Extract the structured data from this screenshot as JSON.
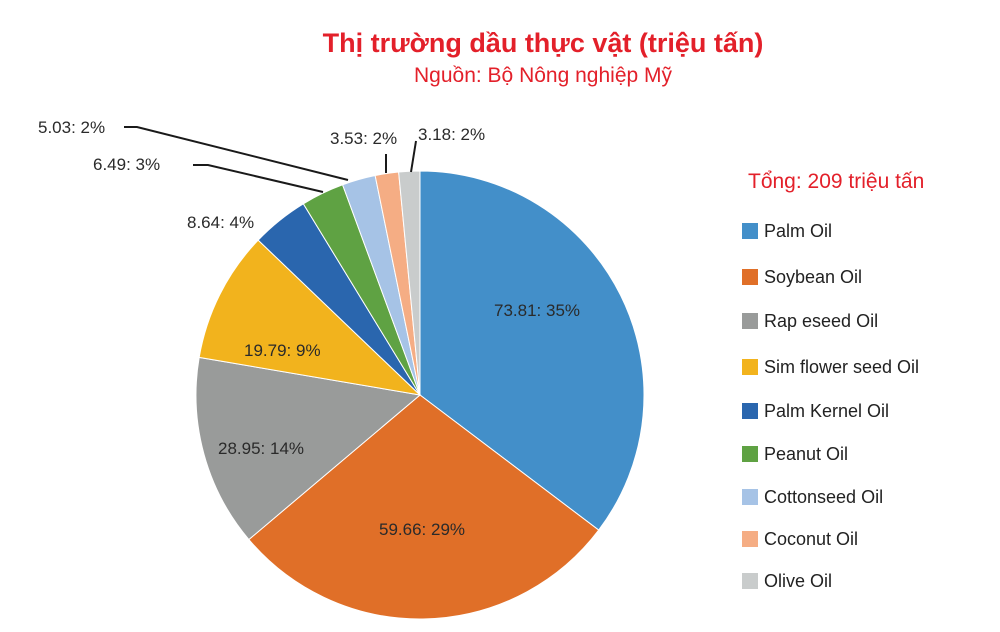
{
  "header": {
    "title": "Thị trường dầu thực vật (triệu tấn)",
    "subtitle": "Nguồn: Bộ Nông nghiệp Mỹ"
  },
  "total_label": "Tổng: 209 triệu tấn",
  "legend": [
    {
      "label": "Palm Oil",
      "color": "#438fc9"
    },
    {
      "label": "Soybean Oil",
      "color": "#e06f28"
    },
    {
      "label": "Rap eseed Oil",
      "color": "#999b9a"
    },
    {
      "label": "Sim flower seed Oil",
      "color": "#f2b31d"
    },
    {
      "label": "Palm Kernel Oil",
      "color": "#2a66ae"
    },
    {
      "label": "Peanut Oil",
      "color": "#5fa243"
    },
    {
      "label": "Cottonseed Oil",
      "color": "#a6c3e6"
    },
    {
      "label": "Coconut Oil",
      "color": "#f5ad84"
    },
    {
      "label": "Olive Oil",
      "color": "#c9cccc"
    }
  ],
  "slice_labels": [
    "73.81: 35%",
    "59.66: 29%",
    "28.95: 14%",
    "19.79: 9%",
    "8.64: 4%",
    "6.49: 3%",
    "5.03: 2%",
    "3.53: 2%",
    "3.18: 2%"
  ],
  "chart_data": {
    "type": "pie",
    "title": "Thị trường dầu thực vật (triệu tấn)",
    "subtitle": "Nguồn: Bộ Nông nghiệp Mỹ",
    "annotation": "Tổng: 209 triệu tấn",
    "unit": "triệu tấn",
    "categories": [
      "Palm Oil",
      "Soybean Oil",
      "Rap eseed Oil",
      "Sim flower seed Oil",
      "Palm Kernel Oil",
      "Peanut Oil",
      "Cottonseed Oil",
      "Coconut Oil",
      "Olive Oil"
    ],
    "values": [
      73.81,
      59.66,
      28.95,
      19.79,
      8.64,
      6.49,
      5.03,
      3.53,
      3.18
    ],
    "percentages": [
      35,
      29,
      14,
      9,
      4,
      3,
      2,
      2,
      2
    ],
    "colors": [
      "#438fc9",
      "#e06f28",
      "#999b9a",
      "#f2b31d",
      "#2a66ae",
      "#5fa243",
      "#a6c3e6",
      "#f5ad84",
      "#c9cccc"
    ],
    "start_angle": "12 o'clock, clockwise",
    "legend_position": "right",
    "data_label_format": "value: percent"
  }
}
